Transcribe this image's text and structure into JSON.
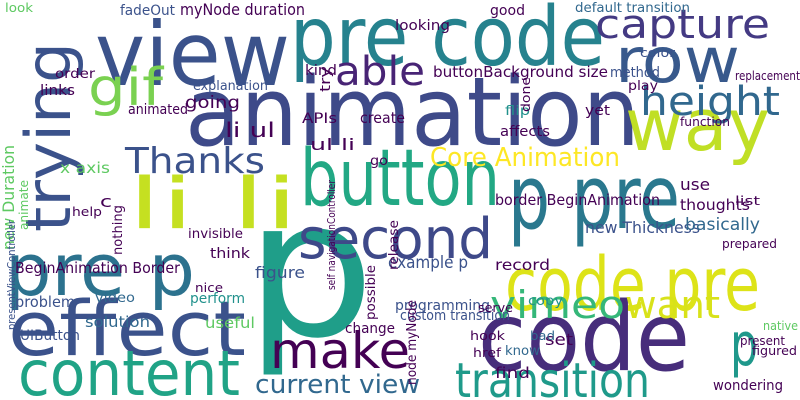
{
  "words": [
    "p",
    "animation",
    "view",
    "pre code",
    "row",
    "capture",
    "able",
    "gif",
    "way",
    "height",
    "trying",
    "Thanks",
    "button",
    "li li",
    "second",
    "Core Animation",
    "p pre",
    "pre p",
    "effect",
    "content",
    "make",
    "code pre",
    "code",
    "vimeo",
    "want",
    "transition",
    "current view",
    "p",
    "li ul",
    "going",
    "BeginAnimation Border",
    "UIButton",
    "problem",
    "solution",
    "video",
    "new Duration",
    "x axis",
    "myNode duration",
    "default transition",
    "buttonBackground size",
    "new Thickness",
    "figure",
    "useful",
    "perform",
    "think",
    "invisible",
    "record",
    "programming",
    "example p",
    "border BeginAnimation",
    "thoughts",
    "basically",
    "use",
    "prepared",
    "list",
    "set",
    "bad",
    "find",
    "know",
    "copy",
    "figured",
    "wondering",
    "present",
    "native",
    "yet",
    "play",
    "flip",
    "affects",
    "create",
    "APIs",
    "explanation",
    "animated",
    "kind",
    "looking",
    "good",
    "fadeOut",
    "method",
    "color",
    "replacement",
    "function",
    "links",
    "order",
    "ul li",
    "go",
    "c",
    "help",
    "custom transition",
    "change",
    "hook",
    "href",
    "nice",
    "done",
    "try",
    "nothing",
    "release",
    "possible",
    "node myNode",
    "self navigationController",
    "presentViewController",
    "animate",
    "look",
    "serve"
  ]
}
